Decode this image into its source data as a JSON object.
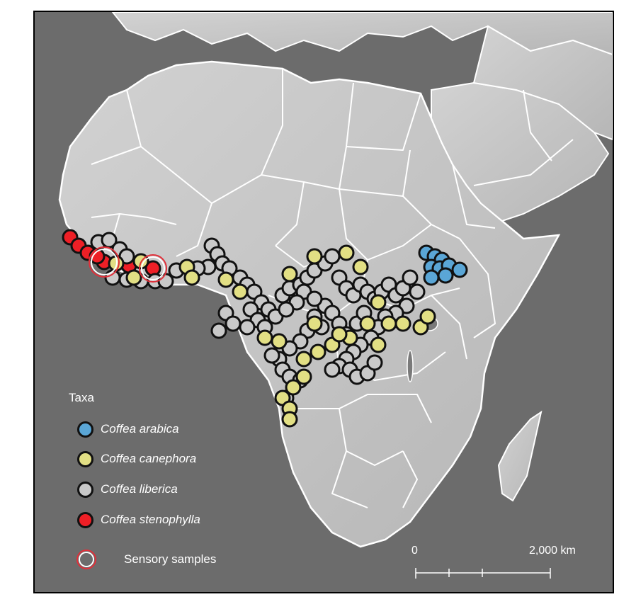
{
  "legend": {
    "title": "Taxa",
    "items": [
      {
        "label": "Coffea arabica",
        "color": "#5aa6d6"
      },
      {
        "label": "Coffea canephora",
        "color": "#e2df84"
      },
      {
        "label": "Coffea liberica",
        "color": "#c9c9c9"
      },
      {
        "label": "Coffea stenophylla",
        "color": "#ee1f26"
      }
    ],
    "sensory_label": "Sensory samples",
    "sensory_ring_color": "#e0303a"
  },
  "scale_bar": {
    "start_label": "0",
    "end_label": "2,000 km"
  },
  "colors": {
    "ocean": "#6c6c6c",
    "land": "#c4c4c4",
    "borders": "#ffffff",
    "frame": "#000000"
  }
}
